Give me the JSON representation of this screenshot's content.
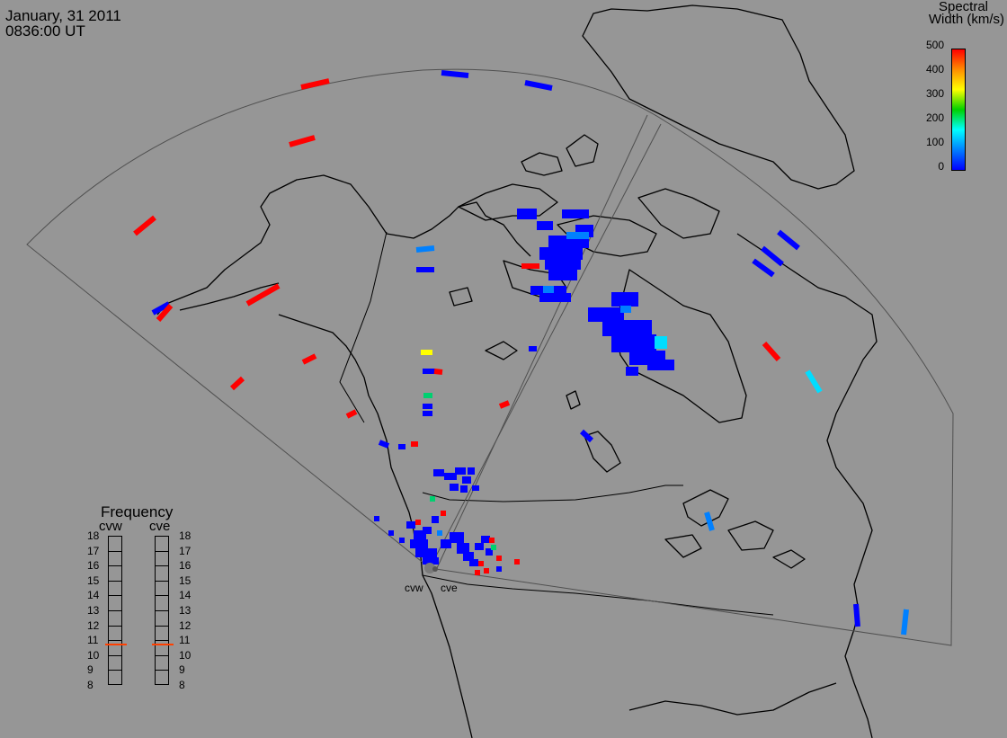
{
  "header": {
    "date": "January, 31 2011",
    "time": "0836:00 UT"
  },
  "colorbar": {
    "title_line1": "Spectral",
    "title_line2": "Width (km/s)",
    "ticks": [
      "500",
      "400",
      "300",
      "200",
      "100",
      "0"
    ],
    "gradient_colors": [
      "#ff0000",
      "#ff8c00",
      "#ffff00",
      "#00d000",
      "#00ffff",
      "#0080ff",
      "#0000ff"
    ]
  },
  "frequency_panel": {
    "title": "Frequency",
    "left_label": "cvw",
    "right_label": "cve",
    "levels": [
      "18",
      "17",
      "16",
      "15",
      "14",
      "13",
      "12",
      "11",
      "10",
      "9",
      "8"
    ],
    "cvw_value_mhz": 10.8,
    "cve_value_mhz": 10.8,
    "marker_color": "#ff4000"
  },
  "radars": {
    "west_label": "cvw",
    "east_label": "cve"
  },
  "colors": {
    "background": "#969696",
    "coastline": "#000000",
    "fov": "#505050",
    "low_width": "#0000ff",
    "high_width": "#ff0000"
  }
}
